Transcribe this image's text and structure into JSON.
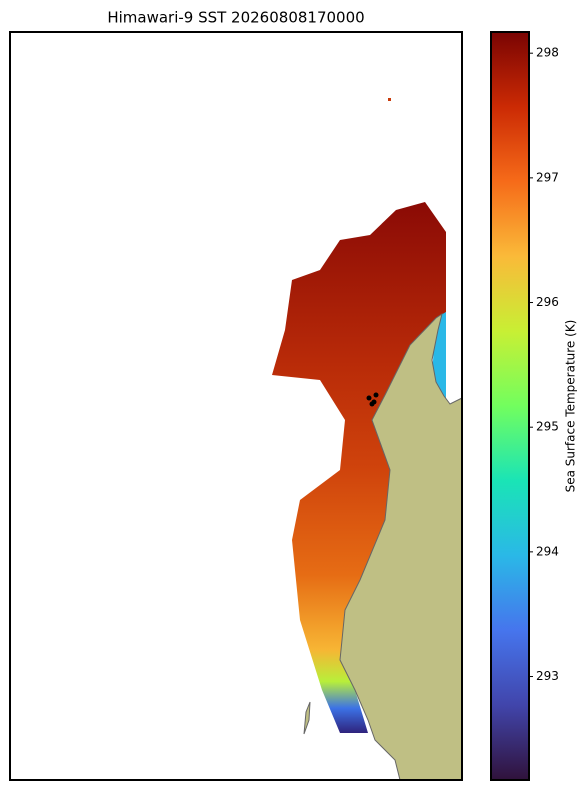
{
  "title": "Himawari-9 SST 20260808170000",
  "colorbar": {
    "label": "Sea Surface Temperature (K)",
    "lim": [
      292.17,
      298.17
    ],
    "ticks": [
      293,
      294,
      295,
      296,
      297,
      298
    ]
  }
}
